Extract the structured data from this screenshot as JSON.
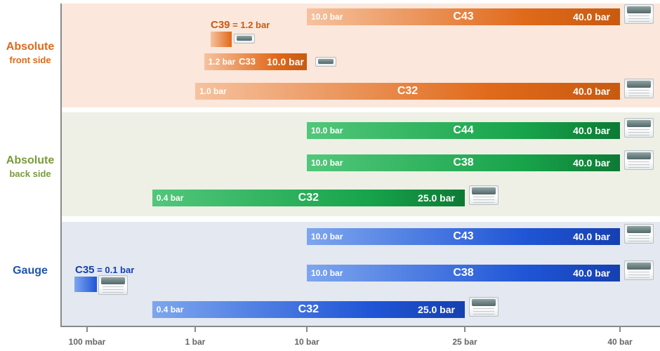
{
  "chart_data": {
    "type": "bar",
    "subtype": "horizontal floating range bars",
    "x_axis": {
      "scale": "log",
      "unit": "bar",
      "ticks": [
        {
          "value": 0.1,
          "label": "100 mbar"
        },
        {
          "value": 1,
          "label": "1 bar"
        },
        {
          "value": 10,
          "label": "10 bar"
        },
        {
          "value": 25,
          "label": "25 bar"
        },
        {
          "value": 40,
          "label": "40 bar"
        }
      ]
    },
    "groups": [
      {
        "id": "absolute-front",
        "label": "Absolute",
        "sublabel": "front side",
        "color": "#e0691a",
        "light": "#f6c29f",
        "dark": "#c85a10",
        "bars": [
          {
            "name": "C43",
            "min": 10,
            "max": 40,
            "min_label": "10.0 bar",
            "max_label": "40.0 bar"
          },
          {
            "name": "C39",
            "value": 1.2,
            "eq_label": "= 1.2 bar",
            "single": true
          },
          {
            "name": "C33",
            "min": 1.2,
            "max": 10,
            "min_label": "1.2 bar",
            "max_label": "10.0 bar"
          },
          {
            "name": "C32",
            "min": 1,
            "max": 40,
            "min_label": "1.0 bar",
            "max_label": "40.0 bar"
          }
        ]
      },
      {
        "id": "absolute-back",
        "label": "Absolute",
        "sublabel": "back side",
        "color": "#17a34a",
        "light": "#52c77a",
        "dark": "#0d7a35",
        "bars": [
          {
            "name": "C44",
            "min": 10,
            "max": 40,
            "min_label": "10.0 bar",
            "max_label": "40.0 bar"
          },
          {
            "name": "C38",
            "min": 10,
            "max": 40,
            "min_label": "10.0 bar",
            "max_label": "40.0 bar"
          },
          {
            "name": "C32",
            "min": 0.4,
            "max": 25,
            "min_label": "0.4 bar",
            "max_label": "25.0 bar"
          }
        ]
      },
      {
        "id": "gauge",
        "label": "Gauge",
        "sublabel": "",
        "color": "#1f55d6",
        "light": "#7ea6ee",
        "dark": "#1640b0",
        "bars": [
          {
            "name": "C43",
            "min": 10,
            "max": 40,
            "min_label": "10.0 bar",
            "max_label": "40.0 bar"
          },
          {
            "name": "C35",
            "value": 0.1,
            "eq_label": "= 0.1 bar",
            "single": true
          },
          {
            "name": "C38",
            "min": 10,
            "max": 40,
            "min_label": "10.0 bar",
            "max_label": "40.0 bar"
          },
          {
            "name": "C32",
            "min": 0.4,
            "max": 25,
            "min_label": "0.4 bar",
            "max_label": "25.0 bar"
          }
        ]
      }
    ],
    "label_colors": {
      "absolute-front": "#e0691a",
      "absolute-back": "#7a9a3c",
      "gauge": "#1f55a8"
    }
  }
}
